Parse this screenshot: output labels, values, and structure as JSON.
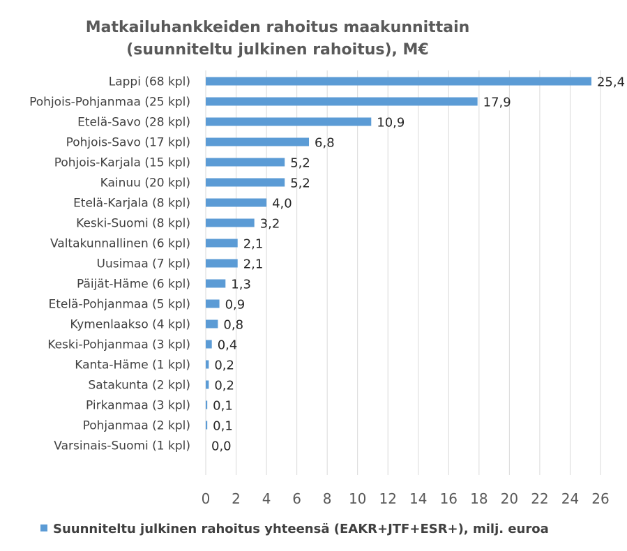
{
  "chart_data": {
    "type": "bar",
    "orientation": "horizontal",
    "title_line1": "Matkailuhankkeiden rahoitus maakunnittain",
    "title_line2": "(suunniteltu julkinen rahoitus), M€",
    "categories": [
      "Lappi (68 kpl)",
      "Pohjois-Pohjanmaa (25 kpl)",
      "Etelä-Savo (28 kpl)",
      "Pohjois-Savo (17 kpl)",
      "Pohjois-Karjala (15 kpl)",
      "Kainuu (20 kpl)",
      "Etelä-Karjala (8 kpl)",
      "Keski-Suomi (8 kpl)",
      "Valtakunnallinen (6 kpl)",
      "Uusimaa (7 kpl)",
      "Päijät-Häme (6 kpl)",
      "Etelä-Pohjanmaa (5 kpl)",
      "Kymenlaakso (4 kpl)",
      "Keski-Pohjanmaa (3 kpl)",
      "Kanta-Häme (1 kpl)",
      "Satakunta (2 kpl)",
      "Pirkanmaa (3 kpl)",
      "Pohjanmaa (2 kpl)",
      "Varsinais-Suomi (1 kpl)"
    ],
    "values": [
      25.4,
      17.9,
      10.9,
      6.8,
      5.2,
      5.2,
      4.0,
      3.2,
      2.1,
      2.1,
      1.3,
      0.9,
      0.8,
      0.4,
      0.2,
      0.2,
      0.1,
      0.1,
      0.0
    ],
    "value_labels": [
      "25,4",
      "17,9",
      "10,9",
      "6,8",
      "5,2",
      "5,2",
      "4,0",
      "3,2",
      "2,1",
      "2,1",
      "1,3",
      "0,9",
      "0,8",
      "0,4",
      "0,2",
      "0,2",
      "0,1",
      "0,1",
      "0,0"
    ],
    "xlim": [
      0,
      26
    ],
    "x_ticks": [
      0,
      2,
      4,
      6,
      8,
      10,
      12,
      14,
      16,
      18,
      20,
      22,
      24,
      26
    ],
    "grid": "vertical",
    "legend_position": "bottom",
    "series": [
      {
        "name": "Suunniteltu julkinen rahoitus yhteensä (EAKR+JTF+ESR+), milj. euroa",
        "color": "#5b9bd5"
      }
    ]
  }
}
